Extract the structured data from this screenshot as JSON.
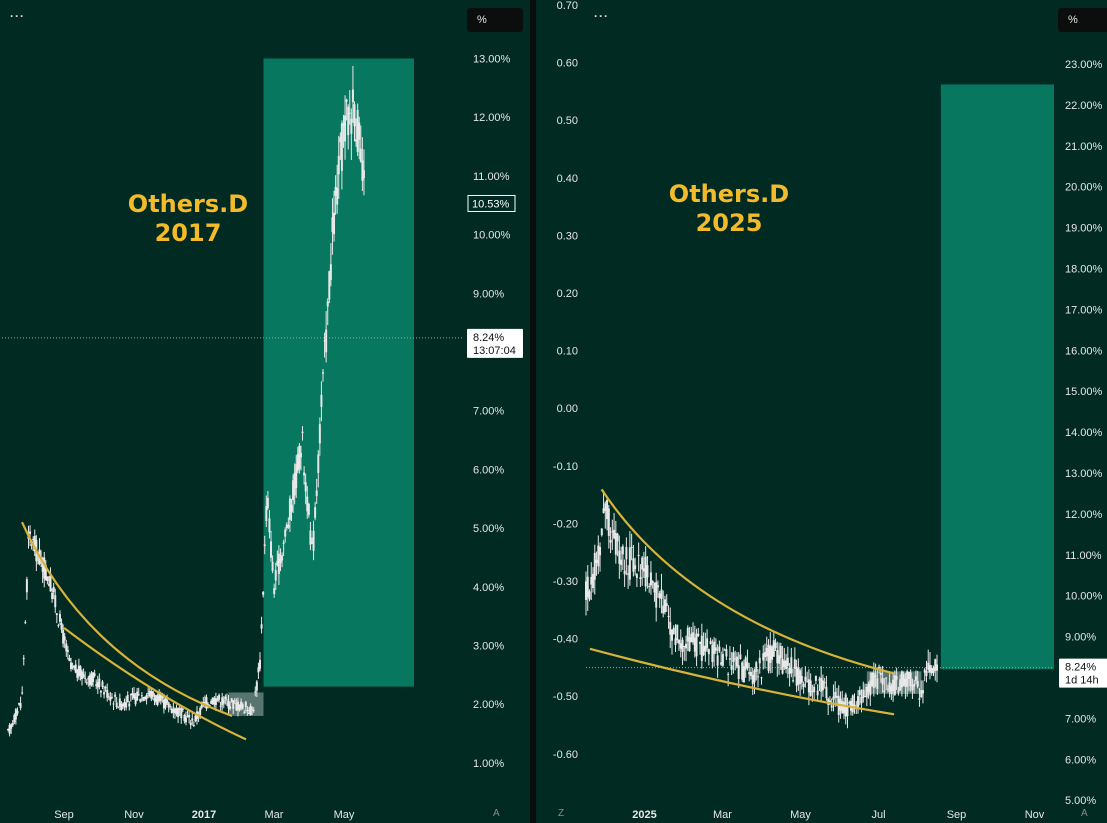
{
  "colors": {
    "background": "#012a22",
    "box": "#07775f",
    "candles": "#e8e8e8",
    "trendline": "#d8b23a",
    "title": "#f3bb2a",
    "axis_text": "#e6e6e6",
    "price_line": "#8fa7a0"
  },
  "left": {
    "menu_label": "···",
    "scale_button": "%",
    "corner_label": "A",
    "current_price": "10.53%",
    "crosshair_value": "8.24%",
    "crosshair_time": "13:07:04"
  },
  "right": {
    "menu_label": "···",
    "scale_button": "%",
    "corner_label_left": "Z",
    "corner_label_right": "A",
    "crosshair_value": "8.24%",
    "crosshair_time": "1d 14h"
  },
  "chart_data": [
    {
      "type": "candlestick",
      "title": [
        "Others.D",
        "2017"
      ],
      "xlabel": "",
      "ylabel": "",
      "x_ticks": [
        "Sep",
        "Nov",
        "2017",
        "Mar",
        "May"
      ],
      "y_ticks": [
        "13.00%",
        "12.00%",
        "11.00%",
        "10.00%",
        "9.00%",
        "7.00%",
        "6.00%",
        "5.00%",
        "4.00%",
        "3.00%",
        "2.00%",
        "1.00%"
      ],
      "ylim": [
        0.5,
        13.8
      ],
      "x_months": [
        0,
        10.2
      ],
      "tick_month_positions": [
        1.6,
        3.6,
        5.6,
        7.6,
        9.6
      ],
      "series": [
        {
          "name": "Others.D",
          "month": [
            0,
            0.4,
            0.6,
            1.2,
            1.8,
            2.5,
            3.2,
            4.0,
            4.8,
            5.3,
            5.6,
            5.9,
            6.5,
            7.0,
            7.2,
            7.4,
            7.6,
            8.0,
            8.4,
            8.7,
            9.0,
            9.3,
            9.6,
            9.9,
            10.2
          ],
          "value": [
            1.5,
            2.1,
            4.9,
            4.1,
            2.6,
            2.4,
            2.0,
            2.2,
            1.9,
            1.7,
            2.0,
            2.1,
            2.0,
            1.9,
            2.7,
            5.6,
            4.0,
            5.1,
            6.5,
            4.5,
            7.5,
            10.2,
            11.8,
            12.3,
            10.53
          ]
        }
      ],
      "trendlines": [
        {
          "from_month": 0.4,
          "from_value": 5.1,
          "to_month": 6.4,
          "to_value": 1.8,
          "shape": "concave-curve"
        },
        {
          "from_month": 1.6,
          "from_value": 3.3,
          "to_month": 6.8,
          "to_value": 1.4,
          "shape": "gentle-curve"
        }
      ],
      "target_box": {
        "from_month": 7.3,
        "to_month": 11.6,
        "bottom_value": 2.3,
        "top_value": 13.0
      },
      "consolidation_box": {
        "from_month": 6.3,
        "to_month": 7.3,
        "bottom_value": 1.8,
        "top_value": 2.2
      },
      "crosshair_value": 8.24,
      "last_value": 10.53
    },
    {
      "type": "candlestick",
      "title": [
        "Others.D",
        "2025"
      ],
      "xlabel": "",
      "ylabel": "",
      "x_ticks": [
        "2025",
        "Mar",
        "May",
        "Jul",
        "Sep",
        "Nov"
      ],
      "y_ticks_right": [
        "23.00%",
        "22.00%",
        "21.00%",
        "20.00%",
        "19.00%",
        "18.00%",
        "17.00%",
        "16.00%",
        "15.00%",
        "14.00%",
        "13.00%",
        "12.00%",
        "11.00%",
        "10.00%",
        "9.00%",
        "7.00%",
        "6.00%",
        "5.00%"
      ],
      "y_ticks_left": [
        "0.70",
        "0.60",
        "0.50",
        "0.40",
        "0.30",
        "0.20",
        "0.10",
        "0.00",
        "-0.10",
        "-0.20",
        "-0.30",
        "-0.40",
        "-0.50",
        "-0.60"
      ],
      "ylim": [
        4.9,
        24.0
      ],
      "x_months": [
        0,
        12
      ],
      "tick_month_positions": [
        1.5,
        3.5,
        5.5,
        7.5,
        9.5,
        11.5
      ],
      "series": [
        {
          "name": "Others.D",
          "month": [
            0,
            0.3,
            0.5,
            0.9,
            1.2,
            1.6,
            2.0,
            2.3,
            2.8,
            3.3,
            3.8,
            4.3,
            4.8,
            5.2,
            5.6,
            6.0,
            6.4,
            6.8,
            7.1,
            7.5,
            7.8,
            8.2,
            8.5,
            8.8,
            9.0
          ],
          "value": [
            10.0,
            11.0,
            12.2,
            10.8,
            10.8,
            10.5,
            9.7,
            9.0,
            8.8,
            8.6,
            8.3,
            8.1,
            8.6,
            8.3,
            7.9,
            7.8,
            7.4,
            7.3,
            7.6,
            8.0,
            7.8,
            7.9,
            7.7,
            8.1,
            8.24
          ]
        }
      ],
      "trendlines": [
        {
          "from_month": 0.4,
          "from_value": 12.6,
          "to_month": 7.9,
          "to_value": 8.1,
          "shape": "concave-curve"
        },
        {
          "from_month": 0.1,
          "from_value": 8.7,
          "to_month": 7.9,
          "to_value": 7.1,
          "shape": "gentle-curve"
        }
      ],
      "target_box": {
        "from_month": 9.1,
        "to_month": 12.0,
        "bottom_value": 8.2,
        "top_value": 22.5
      },
      "consolidation_box": {
        "from_month": 7.2,
        "to_month": 8.6,
        "bottom_value": 7.6,
        "top_value": 8.15
      },
      "crosshair_value": 8.24,
      "last_value": 8.24
    }
  ]
}
